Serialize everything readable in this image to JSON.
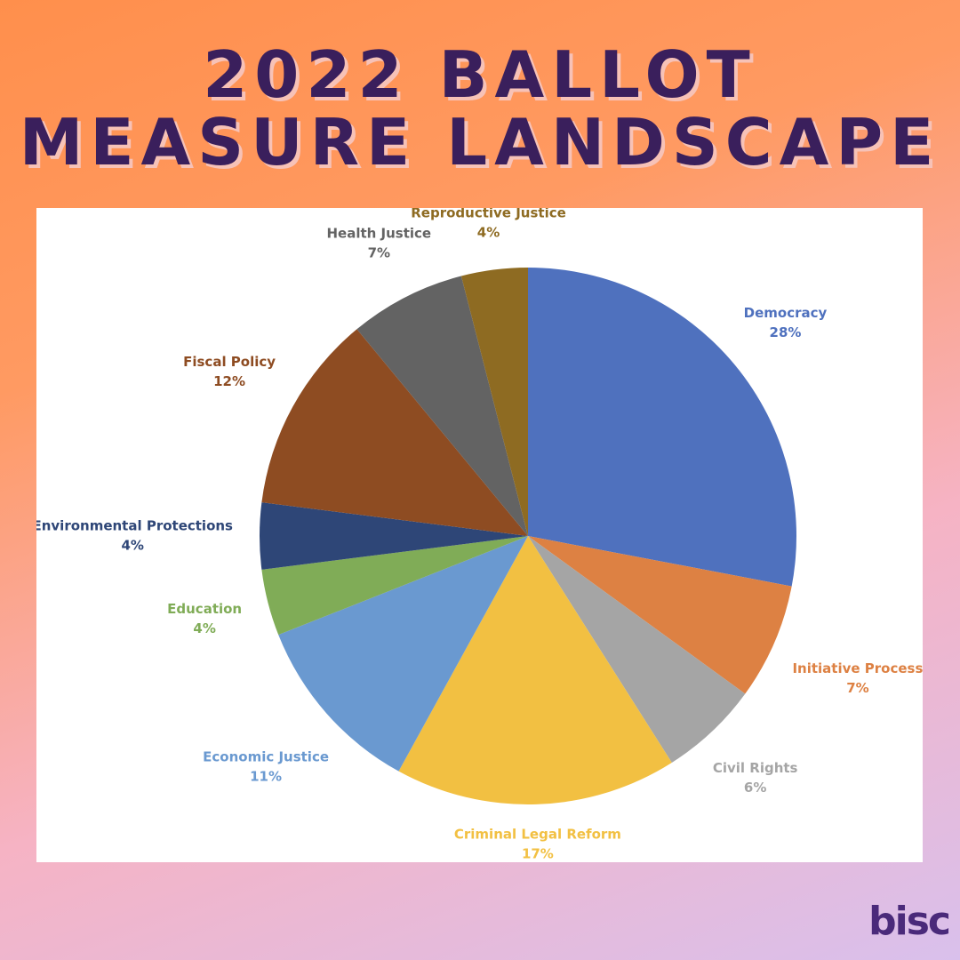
{
  "chart_data": {
    "type": "pie",
    "title": [
      "2022 BALLOT",
      "MEASURE LANDSCAPE"
    ],
    "categories": [
      "Democracy",
      "Initiative Process",
      "Civil Rights",
      "Criminal Legal Reform",
      "Economic Justice",
      "Education",
      "Environmental Protections",
      "Fiscal Policy",
      "Health Justice",
      "Reproductive Justice"
    ],
    "values": [
      28,
      7,
      6,
      17,
      11,
      4,
      4,
      12,
      7,
      4
    ],
    "value_labels": [
      "28%",
      "7%",
      "6%",
      "17%",
      "11%",
      "4%",
      "4%",
      "12%",
      "7%",
      "4%"
    ],
    "colors": [
      "#4f71be",
      "#dd8143",
      "#a5a5a5",
      "#f2c042",
      "#6a99d0",
      "#80ac57",
      "#2e4677",
      "#8e4c22",
      "#636363",
      "#8e6b22"
    ]
  },
  "logo": "bisc"
}
